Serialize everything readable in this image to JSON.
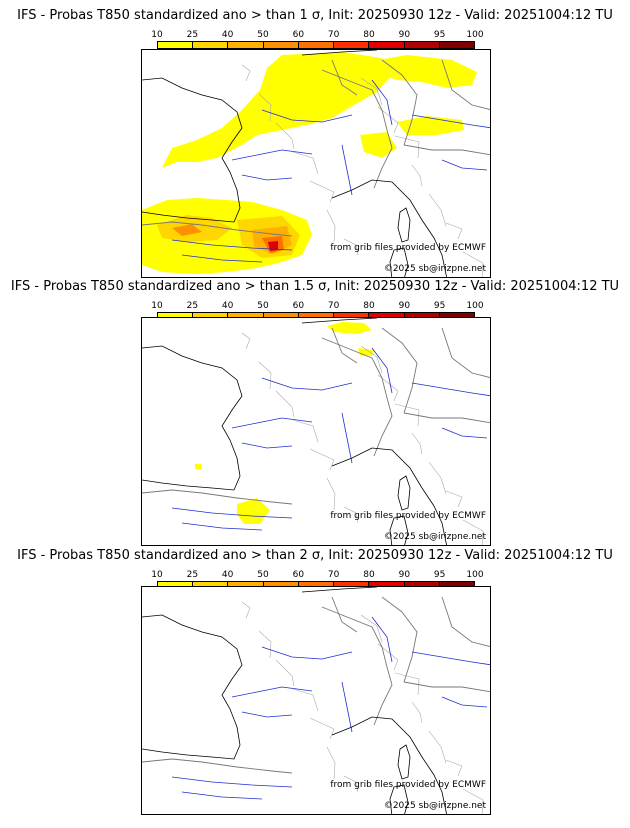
{
  "colorbar": {
    "ticks": [
      "10",
      "25",
      "40",
      "50",
      "60",
      "70",
      "80",
      "90",
      "95",
      "100"
    ],
    "colors": [
      "#ffff00",
      "#ffd700",
      "#ffb000",
      "#ff9000",
      "#ff7000",
      "#ff3000",
      "#e00000",
      "#b00000",
      "#800000"
    ]
  },
  "panels": [
    {
      "title": "IFS - Probas T850  standardized ano > than 1 σ, Init: 20250930 12z - Valid: 20251004:12 TU"
    },
    {
      "title": "IFS - Probas T850  standardized ano > than 1.5 σ, Init: 20250930 12z - Valid: 20251004:12 TU"
    },
    {
      "title": "IFS - Probas T850  standardized ano > than 2 σ, Init: 20250930 12z - Valid: 20251004:12 TU"
    }
  ],
  "credits": {
    "source": "from grib files provided by ECMWF",
    "copyright": "©2025 sb@irizpne.net"
  }
}
